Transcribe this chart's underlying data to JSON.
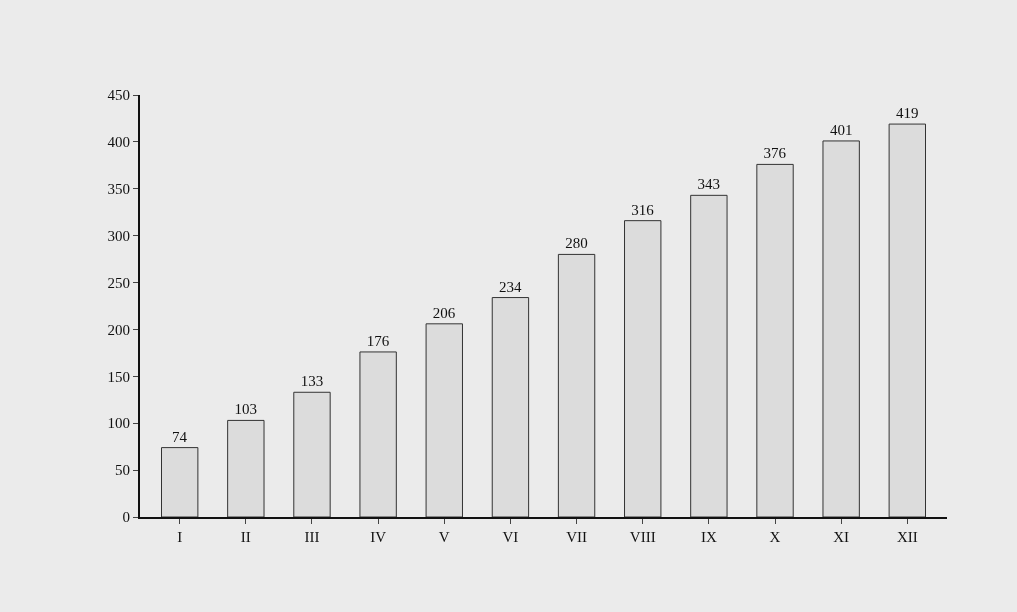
{
  "chart_data": {
    "type": "bar",
    "categories": [
      "I",
      "II",
      "III",
      "IV",
      "V",
      "VI",
      "VII",
      "VIII",
      "IX",
      "X",
      "XI",
      "XII"
    ],
    "values": [
      74,
      103,
      133,
      176,
      206,
      234,
      280,
      316,
      343,
      376,
      401,
      419
    ],
    "color": "#dcdcdc",
    "data_labels": true,
    "grid": false,
    "ylim": [
      0,
      450
    ],
    "yticks": [
      0,
      50,
      100,
      150,
      200,
      250,
      300,
      350,
      400,
      450
    ]
  }
}
